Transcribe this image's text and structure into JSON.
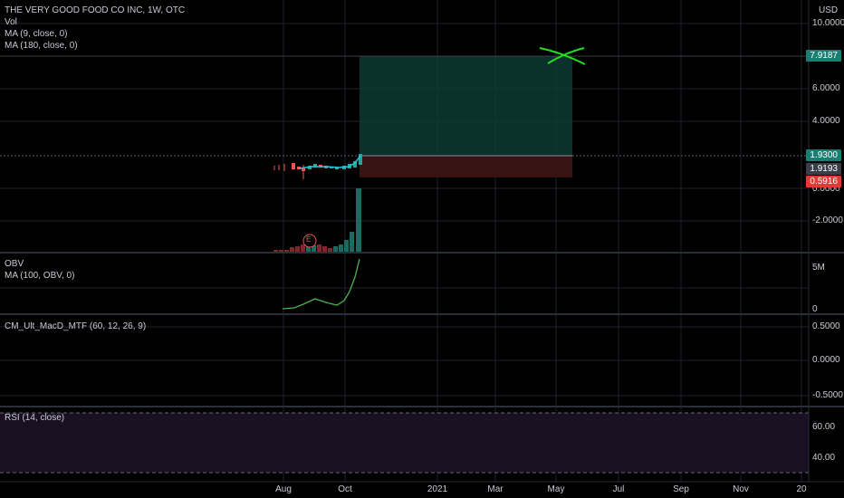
{
  "header": {
    "symbol_title": "THE VERY GOOD FOOD CO INC, 1W, OTC",
    "vol_label": "Vol",
    "ma9_label": "MA (9, close, 0)",
    "ma180_label": "MA (180, close, 0)",
    "currency": "USD"
  },
  "price_axis": {
    "ticks": [
      "10.0000",
      "6.0000",
      "4.0000",
      "0.0000",
      "-2.0000"
    ],
    "tags": {
      "target": "7.9187",
      "entry": "1.9300",
      "current": "1.9193",
      "stop": "0.5916"
    },
    "colors": {
      "target": "#1a7f72",
      "entry": "#1a7f72",
      "current": "#3a3e48",
      "stop": "#e53935"
    }
  },
  "obv_pane": {
    "title": "OBV",
    "ma_label": "MA (100, OBV, 0)",
    "ticks": [
      "5M",
      "0"
    ]
  },
  "macd_pane": {
    "title": "CM_Ult_MacD_MTF (60, 12, 26, 9)",
    "ticks": [
      "0.5000",
      "0.0000",
      "-0.5000"
    ]
  },
  "rsi_pane": {
    "title": "RSI (14, close)",
    "ticks": [
      "60.00",
      "40.00"
    ]
  },
  "time_axis": {
    "labels": [
      "Aug",
      "Oct",
      "2021",
      "Mar",
      "May",
      "Jul",
      "Sep",
      "Nov",
      "20"
    ]
  },
  "earnings_marker": "E",
  "colors": {
    "up": "#26a69a",
    "down": "#ef5350",
    "obv_line": "#4caf50",
    "annotation_x": "#22dd22",
    "rsi_band": "#1a1022"
  }
}
